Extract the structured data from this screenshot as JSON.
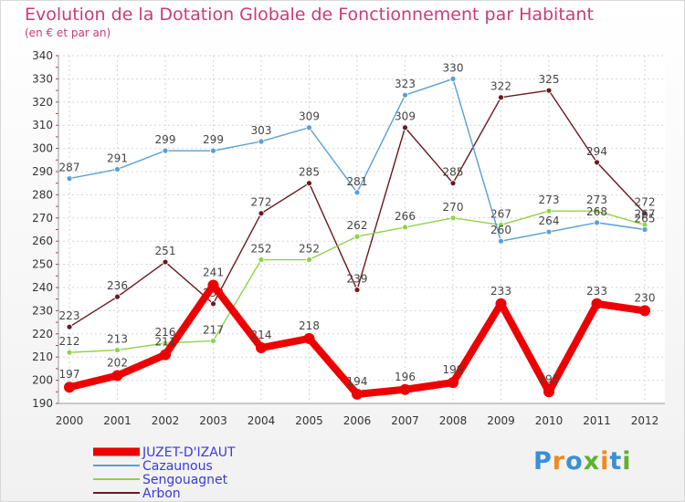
{
  "header": {
    "title": "Evolution de la Dotation Globale de Fonctionnement par Habitant",
    "subtitle": "(en € et par an)"
  },
  "logo": {
    "text": "Proxiti"
  },
  "chart_data": {
    "type": "line",
    "title": "Evolution de la Dotation Globale de Fonctionnement par Habitant",
    "subtitle": "(en € et par an)",
    "x": [
      "2000",
      "2001",
      "2002",
      "2003",
      "2004",
      "2005",
      "2006",
      "2007",
      "2008",
      "2009",
      "2010",
      "2011",
      "2012"
    ],
    "ylim": [
      190,
      340
    ],
    "yticks": [
      190,
      200,
      210,
      220,
      230,
      240,
      250,
      260,
      270,
      280,
      290,
      300,
      310,
      320,
      330,
      340
    ],
    "grid": true,
    "legend_position": "bottom-left",
    "series": [
      {
        "name": "Arbon",
        "color": "#6b1a1f",
        "values": [
          223,
          236,
          251,
          233,
          272,
          285,
          239,
          309,
          285,
          322,
          325,
          294,
          272
        ]
      },
      {
        "name": "Sengouagnet",
        "color": "#8fd24a",
        "values": [
          212,
          213,
          216,
          217,
          252,
          252,
          262,
          266,
          270,
          267,
          273,
          273,
          267
        ]
      },
      {
        "name": "Cazaunous",
        "color": "#5a9fd4",
        "values": [
          287,
          291,
          299,
          299,
          303,
          309,
          281,
          323,
          330,
          260,
          264,
          268,
          265
        ]
      },
      {
        "name": "JUZET-D'IZAUT",
        "color": "#ee0000",
        "values": [
          197,
          202,
          211,
          241,
          214,
          218,
          194,
          196,
          199,
          233,
          195,
          233,
          230
        ]
      }
    ],
    "legend_order": [
      "JUZET-D'IZAUT",
      "Cazaunous",
      "Sengouagnet",
      "Arbon"
    ],
    "legend_text_color": "#3b3bd6"
  }
}
